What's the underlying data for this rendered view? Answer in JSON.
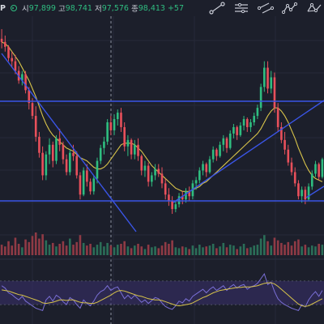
{
  "header": {
    "symbol_suffix": "P",
    "open_label": "시",
    "open_value": "97,899",
    "high_label": "고",
    "high_value": "98,741",
    "low_label": "저",
    "low_value": "97,576",
    "close_label": "종",
    "close_value": "98,413",
    "change_value": "+57"
  },
  "toolbar": {
    "icons": [
      "trendline-icon",
      "horizontal-lines-icon",
      "parallel-channel-icon",
      "pattern-icon",
      "xabcd-pattern-icon"
    ]
  },
  "colors": {
    "background": "#1c1f2b",
    "up": "#2fbd80",
    "down": "#e8505b",
    "volume_up": "#2b6e58",
    "volume_down": "#8f3a45",
    "ma": "#d8c44a",
    "trendline": "#3a55e6",
    "rsi": "#7a6fd6",
    "rsi_signal": "#d8c44a",
    "rsi_band": "#3a2f6e"
  },
  "chart_data": {
    "type": "candlestick",
    "ohlc": [
      [
        97.6,
        97.9,
        97.3,
        97.5
      ],
      [
        97.5,
        97.7,
        97.2,
        97.35
      ],
      [
        97.35,
        97.4,
        96.9,
        97.0
      ],
      [
        97.0,
        97.2,
        96.7,
        96.9
      ],
      [
        96.9,
        97.1,
        96.5,
        96.6
      ],
      [
        96.6,
        96.75,
        96.2,
        96.3
      ],
      [
        96.3,
        96.6,
        96.15,
        96.5
      ],
      [
        96.5,
        96.6,
        95.9,
        96.0
      ],
      [
        96.0,
        96.1,
        95.4,
        95.6
      ],
      [
        95.6,
        95.75,
        95.1,
        95.2
      ],
      [
        95.2,
        95.5,
        94.4,
        94.55
      ],
      [
        94.55,
        94.7,
        93.9,
        94.05
      ],
      [
        94.05,
        94.25,
        93.2,
        93.35
      ],
      [
        93.35,
        94.1,
        93.2,
        94.0
      ],
      [
        94.0,
        94.5,
        93.7,
        94.3
      ],
      [
        94.3,
        94.4,
        93.6,
        93.8
      ],
      [
        93.8,
        94.6,
        93.7,
        94.5
      ],
      [
        94.5,
        94.8,
        94.1,
        94.3
      ],
      [
        94.3,
        94.4,
        93.7,
        93.85
      ],
      [
        93.85,
        94.0,
        93.35,
        93.45
      ],
      [
        93.45,
        94.15,
        93.35,
        94.05
      ],
      [
        94.05,
        94.3,
        93.8,
        93.95
      ],
      [
        93.95,
        94.1,
        93.25,
        93.35
      ],
      [
        93.35,
        93.45,
        92.6,
        92.75
      ],
      [
        92.75,
        93.6,
        92.7,
        93.5
      ],
      [
        93.5,
        93.7,
        93.0,
        93.15
      ],
      [
        93.15,
        93.25,
        92.75,
        92.85
      ],
      [
        92.85,
        93.35,
        92.75,
        93.25
      ],
      [
        93.25,
        93.9,
        93.1,
        93.8
      ],
      [
        93.8,
        94.3,
        93.7,
        94.2
      ],
      [
        94.2,
        94.55,
        94.0,
        94.4
      ],
      [
        94.4,
        95.1,
        94.3,
        95.0
      ],
      [
        95.0,
        95.2,
        94.6,
        94.75
      ],
      [
        94.75,
        95.25,
        94.6,
        95.1
      ],
      [
        95.1,
        95.4,
        94.9,
        95.3
      ],
      [
        95.3,
        95.45,
        94.7,
        94.85
      ],
      [
        94.85,
        95.0,
        94.1,
        94.25
      ],
      [
        94.25,
        94.6,
        93.95,
        94.45
      ],
      [
        94.45,
        94.5,
        93.85,
        94.0
      ],
      [
        94.0,
        94.45,
        93.85,
        94.3
      ],
      [
        94.3,
        94.5,
        93.8,
        93.95
      ],
      [
        93.95,
        94.0,
        93.35,
        93.5
      ],
      [
        93.5,
        93.8,
        93.3,
        93.65
      ],
      [
        93.65,
        93.75,
        93.0,
        93.15
      ],
      [
        93.15,
        93.45,
        93.0,
        93.35
      ],
      [
        93.35,
        93.7,
        93.2,
        93.55
      ],
      [
        93.55,
        93.7,
        93.3,
        93.4
      ],
      [
        93.4,
        93.6,
        92.95,
        93.1
      ],
      [
        93.1,
        93.25,
        92.6,
        92.75
      ],
      [
        92.75,
        92.95,
        92.4,
        92.55
      ],
      [
        92.55,
        92.7,
        92.15,
        92.3
      ],
      [
        92.3,
        92.55,
        92.2,
        92.45
      ],
      [
        92.45,
        92.8,
        92.35,
        92.7
      ],
      [
        92.7,
        92.85,
        92.45,
        92.6
      ],
      [
        92.6,
        92.95,
        92.5,
        92.85
      ],
      [
        92.85,
        93.0,
        92.55,
        92.7
      ],
      [
        92.7,
        93.2,
        92.6,
        93.1
      ],
      [
        93.1,
        93.3,
        92.9,
        93.2
      ],
      [
        93.2,
        93.6,
        93.1,
        93.5
      ],
      [
        93.5,
        93.8,
        93.35,
        93.7
      ],
      [
        93.7,
        93.75,
        93.3,
        93.45
      ],
      [
        93.45,
        93.95,
        93.4,
        93.85
      ],
      [
        93.85,
        94.25,
        93.75,
        94.15
      ],
      [
        94.15,
        94.2,
        93.8,
        93.95
      ],
      [
        93.95,
        94.4,
        93.9,
        94.3
      ],
      [
        94.3,
        94.6,
        94.1,
        94.5
      ],
      [
        94.5,
        94.55,
        94.05,
        94.2
      ],
      [
        94.2,
        94.75,
        94.15,
        94.65
      ],
      [
        94.65,
        94.95,
        94.5,
        94.85
      ],
      [
        94.85,
        94.9,
        94.45,
        94.6
      ],
      [
        94.6,
        95.0,
        94.55,
        94.9
      ],
      [
        94.9,
        95.2,
        94.75,
        95.1
      ],
      [
        95.1,
        95.15,
        94.7,
        94.85
      ],
      [
        94.85,
        95.1,
        94.7,
        95.0
      ],
      [
        95.0,
        95.3,
        94.9,
        95.2
      ],
      [
        95.2,
        95.55,
        95.1,
        95.45
      ],
      [
        95.45,
        96.2,
        95.35,
        96.1
      ],
      [
        96.1,
        96.9,
        95.95,
        96.7
      ],
      [
        96.7,
        96.9,
        95.9,
        96.05
      ],
      [
        96.05,
        96.6,
        95.9,
        96.4
      ],
      [
        96.4,
        96.55,
        95.3,
        95.45
      ],
      [
        95.45,
        95.6,
        94.7,
        94.85
      ],
      [
        94.85,
        95.0,
        94.35,
        94.45
      ],
      [
        94.45,
        94.7,
        94.0,
        94.15
      ],
      [
        94.15,
        94.3,
        93.65,
        93.75
      ],
      [
        93.75,
        93.9,
        93.35,
        93.45
      ],
      [
        93.45,
        93.6,
        93.0,
        93.1
      ],
      [
        93.1,
        93.2,
        92.6,
        92.7
      ],
      [
        92.7,
        93.0,
        92.5,
        92.9
      ],
      [
        92.9,
        93.0,
        92.45,
        92.6
      ],
      [
        92.6,
        93.1,
        92.55,
        93.0
      ],
      [
        93.0,
        93.5,
        92.9,
        93.4
      ],
      [
        93.4,
        93.8,
        93.3,
        93.7
      ],
      [
        93.7,
        93.75,
        93.2,
        93.3
      ],
      [
        93.3,
        93.9,
        93.25,
        93.85
      ]
    ],
    "ma": [
      97.5,
      97.45,
      97.35,
      97.2,
      97.05,
      96.9,
      96.7,
      96.5,
      96.3,
      96.05,
      95.8,
      95.5,
      95.2,
      94.95,
      94.75,
      94.6,
      94.5,
      94.4,
      94.3,
      94.2,
      94.15,
      94.1,
      94.0,
      93.9,
      93.85,
      93.8,
      93.7,
      93.6,
      93.55,
      93.55,
      93.6,
      93.7,
      93.85,
      94.0,
      94.15,
      94.3,
      94.35,
      94.35,
      94.35,
      94.3,
      94.2,
      94.1,
      93.95,
      93.8,
      93.65,
      93.55,
      93.45,
      93.35,
      93.25,
      93.15,
      93.05,
      92.95,
      92.9,
      92.85,
      92.85,
      92.85,
      92.9,
      92.95,
      93.0,
      93.1,
      93.15,
      93.25,
      93.35,
      93.45,
      93.55,
      93.65,
      93.75,
      93.85,
      93.95,
      94.05,
      94.15,
      94.25,
      94.35,
      94.45,
      94.55,
      94.65,
      94.8,
      95.0,
      95.2,
      95.35,
      95.45,
      95.45,
      95.35,
      95.2,
      95.0,
      94.75,
      94.5,
      94.2,
      93.95,
      93.7,
      93.5,
      93.35,
      93.25,
      93.2,
      93.15
    ],
    "volume": [
      1.2,
      1.0,
      1.6,
      1.1,
      2.0,
      1.3,
      0.9,
      1.8,
      1.5,
      2.2,
      2.6,
      1.9,
      2.4,
      1.7,
      1.2,
      1.4,
      1.0,
      1.3,
      1.6,
      1.1,
      1.9,
      1.2,
      1.5,
      2.3,
      1.4,
      1.1,
      1.3,
      0.9,
      1.2,
      1.5,
      1.0,
      1.4,
      1.1,
      0.9,
      1.2,
      1.3,
      1.6,
      1.0,
      0.8,
      1.1,
      1.3,
      1.0,
      0.7,
      1.2,
      0.9,
      1.0,
      0.8,
      1.1,
      1.5,
      1.3,
      1.7,
      0.9,
      0.8,
      1.0,
      0.9,
      0.7,
      1.1,
      0.8,
      1.2,
      0.9,
      1.0,
      1.1,
      1.3,
      0.8,
      1.0,
      1.4,
      0.9,
      1.2,
      1.1,
      0.7,
      1.0,
      1.3,
      0.8,
      0.9,
      1.1,
      1.2,
      1.9,
      2.3,
      1.6,
      1.1,
      2.0,
      1.7,
      1.4,
      1.2,
      1.5,
      1.1,
      1.6,
      1.8,
      1.0,
      1.2,
      0.9,
      1.1,
      1.0,
      1.3,
      1.2
    ],
    "rsi": [
      62,
      58,
      50,
      47,
      42,
      38,
      44,
      36,
      32,
      28,
      24,
      22,
      20,
      38,
      44,
      36,
      46,
      42,
      35,
      30,
      42,
      38,
      30,
      24,
      38,
      32,
      28,
      36,
      46,
      52,
      55,
      62,
      54,
      58,
      60,
      50,
      40,
      46,
      40,
      46,
      40,
      34,
      38,
      32,
      37,
      42,
      40,
      33,
      27,
      24,
      22,
      28,
      36,
      33,
      40,
      36,
      44,
      48,
      52,
      56,
      50,
      56,
      60,
      54,
      58,
      62,
      54,
      60,
      64,
      58,
      62,
      64,
      56,
      60,
      62,
      66,
      74,
      82,
      64,
      68,
      52,
      40,
      34,
      30,
      27,
      24,
      22,
      20,
      30,
      26,
      38,
      46,
      52,
      44,
      54
    ],
    "rsi_ma": [
      55,
      54,
      53,
      51,
      49,
      47,
      46,
      44,
      42,
      40,
      38,
      36,
      33,
      32,
      33,
      34,
      36,
      38,
      38,
      37,
      38,
      38,
      36,
      34,
      33,
      33,
      32,
      32,
      34,
      37,
      40,
      43,
      46,
      50,
      53,
      54,
      53,
      51,
      49,
      47,
      45,
      44,
      42,
      40,
      39,
      38,
      38,
      37,
      35,
      33,
      31,
      29,
      28,
      29,
      30,
      31,
      33,
      36,
      39,
      42,
      44,
      47,
      50,
      52,
      54,
      55,
      56,
      57,
      58,
      59,
      59,
      60,
      60,
      60,
      61,
      62,
      64,
      66,
      67,
      67,
      65,
      61,
      56,
      51,
      46,
      41,
      36,
      31,
      28,
      27,
      28,
      31,
      34,
      37,
      40
    ]
  }
}
